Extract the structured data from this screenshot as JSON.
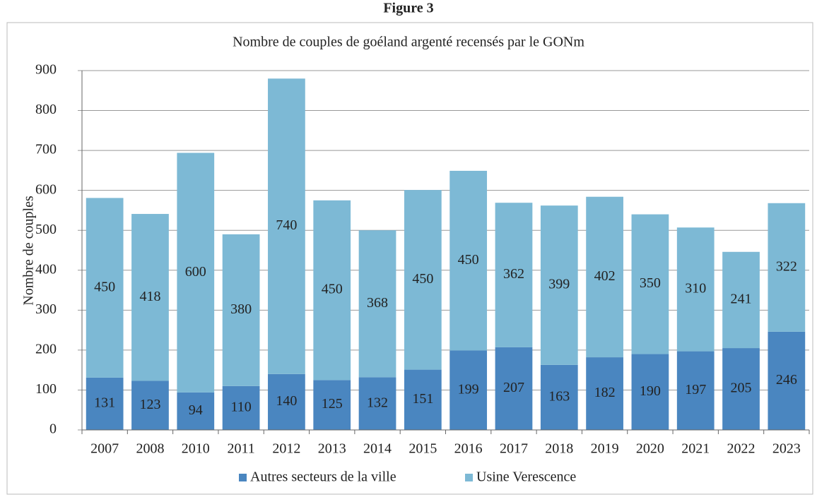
{
  "chart_data": {
    "type": "stacked_bar",
    "figure_label": "Figure 3",
    "title": "Nombre de couples de goéland argenté recensés par le GONm",
    "y_label": "Nombre de couples",
    "categories": [
      "2007",
      "2008",
      "2010",
      "2011",
      "2012",
      "2013",
      "2014",
      "2015",
      "2016",
      "2017",
      "2018",
      "2019",
      "2020",
      "2021",
      "2022",
      "2023"
    ],
    "series": [
      {
        "name": "Autres secteurs de la ville",
        "color": "#4a86c0",
        "values": [
          131,
          123,
          94,
          110,
          140,
          125,
          132,
          151,
          199,
          207,
          163,
          182,
          190,
          197,
          205,
          246
        ]
      },
      {
        "name": "Usine Verescence",
        "color": "#7db9d5",
        "values": [
          450,
          418,
          600,
          380,
          740,
          450,
          368,
          450,
          450,
          362,
          399,
          402,
          350,
          310,
          241,
          322
        ]
      }
    ],
    "ylim": [
      0,
      900
    ],
    "yticks": [
      0,
      100,
      200,
      300,
      400,
      500,
      600,
      700,
      800,
      900
    ],
    "grid": true,
    "legend": "bottom"
  }
}
